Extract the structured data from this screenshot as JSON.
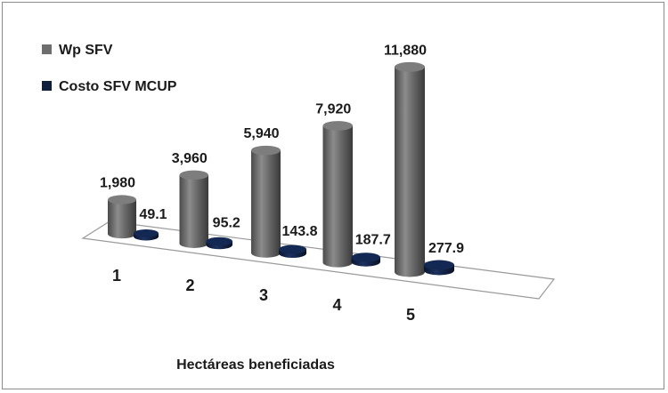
{
  "chart_data": {
    "type": "bar",
    "style": "3d-cylinder",
    "categories": [
      "1",
      "2",
      "3",
      "4",
      "5"
    ],
    "series": [
      {
        "name": "Wp SFV",
        "values": [
          1980,
          3960,
          5940,
          7920,
          11880
        ],
        "labels": [
          "1,980",
          "3,960",
          "5,940",
          "7,920",
          "11,880"
        ],
        "color": "#6e6e6e"
      },
      {
        "name": "Costo SFV MCUP",
        "values": [
          49.1,
          95.2,
          143.8,
          187.7,
          277.9
        ],
        "labels": [
          "49.1",
          "95.2",
          "143.8",
          "187.7",
          "277.9"
        ],
        "color": "#0f1e3c"
      }
    ],
    "title": "",
    "xlabel": "Hectáreas beneficiadas",
    "ylabel": "",
    "ylim": [
      0,
      12000
    ],
    "grid": false,
    "legend": "top-left"
  }
}
